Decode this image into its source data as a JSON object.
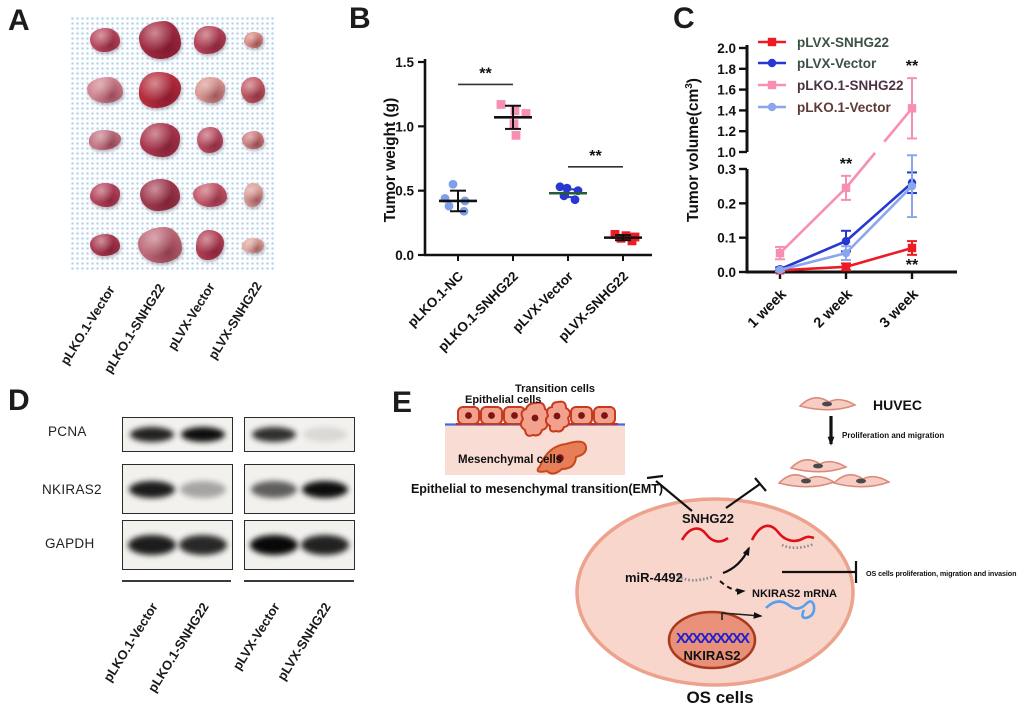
{
  "panel_labels": {
    "a": "A",
    "b": "B",
    "c": "C",
    "d": "D",
    "e": "E"
  },
  "panel_a": {
    "group_labels": [
      "pLKO.1-Vector",
      "pLKO.1-SNHG22",
      "pLVX-Vector",
      "pLVX-SNHG22"
    ],
    "tumors": [
      [
        30,
        24,
        "#b8485e"
      ],
      [
        42,
        38,
        "#a02a42"
      ],
      [
        32,
        28,
        "#b34258"
      ],
      [
        19,
        16,
        "#d98f86"
      ],
      [
        36,
        26,
        "#cf8490"
      ],
      [
        42,
        36,
        "#b52d3d"
      ],
      [
        30,
        26,
        "#d89a92"
      ],
      [
        24,
        26,
        "#c05a64"
      ],
      [
        32,
        20,
        "#c27784"
      ],
      [
        40,
        34,
        "#a8374e"
      ],
      [
        26,
        26,
        "#b94f62"
      ],
      [
        22,
        18,
        "#cc8280"
      ],
      [
        30,
        24,
        "#b4455c"
      ],
      [
        40,
        32,
        "#9e3a50"
      ],
      [
        34,
        24,
        "#c4586a"
      ],
      [
        19,
        24,
        "#daa198"
      ],
      [
        30,
        22,
        "#a83a50"
      ],
      [
        44,
        36,
        "#bc6a78"
      ],
      [
        28,
        30,
        "#b04054"
      ],
      [
        22,
        15,
        "#e0ad9f"
      ]
    ]
  },
  "chart_data": [
    {
      "type": "scatter",
      "ylabel": "Tumor weight (g)",
      "ylim": [
        0,
        1.5
      ],
      "yticks": [
        0,
        0.5,
        1,
        1.5
      ],
      "categories": [
        "pLKO.1-NC",
        "pLKO.1-SNHG22",
        "pLVX-Vector",
        "pLVX-SNHG22"
      ],
      "series": [
        {
          "category": "pLKO.1-NC",
          "color": "#7da0e8",
          "marker": "circle",
          "points": [
            0.55,
            0.44,
            0.42,
            0.38,
            0.34
          ],
          "mean": 0.42,
          "sd": 0.08,
          "mean_color": "#111111",
          "err_color": "#111111"
        },
        {
          "category": "pLKO.1-SNHG22",
          "color": "#f78fb2",
          "marker": "square",
          "points": [
            1.17,
            1.12,
            1.1,
            1.02,
            0.93
          ],
          "mean": 1.07,
          "sd": 0.09,
          "mean_color": "#111111",
          "err_color": "#111111"
        },
        {
          "category": "pLVX-Vector",
          "color": "#2638d0",
          "marker": "circle",
          "points": [
            0.53,
            0.52,
            0.5,
            0.46,
            0.43
          ],
          "mean": 0.48,
          "sd": 0.03,
          "mean_color": "#2a5c34",
          "err_color": "#2638d0"
        },
        {
          "category": "pLVX-SNHG22",
          "color": "#ec1c24",
          "marker": "square",
          "points": [
            0.16,
            0.15,
            0.14,
            0.13,
            0.11
          ],
          "mean": 0.135,
          "sd": 0.02,
          "mean_color": "#111111",
          "err_color": "#111111"
        }
      ],
      "significance": [
        {
          "between": [
            0,
            1
          ],
          "label": "**"
        },
        {
          "between": [
            2,
            3
          ],
          "label": "**"
        }
      ]
    },
    {
      "type": "line",
      "ylabel": {
        "main": "Tumor volume(cm",
        "sup": "3",
        "end": ")"
      },
      "x_categories": [
        "1 week",
        "2 week",
        "3 week"
      ],
      "axis_break": {
        "lower_range": [
          0,
          0.3
        ],
        "upper_range": [
          1,
          2
        ],
        "lower_ticks": [
          0,
          0.1,
          0.2,
          0.3
        ],
        "upper_ticks": [
          1,
          1.2,
          1.4,
          1.6,
          1.8,
          2
        ]
      },
      "series": [
        {
          "name": "pLVX-SNHG22",
          "color": "#ec1c24",
          "marker": "square",
          "label_color": "#3c5244",
          "values": [
            0.005,
            0.015,
            0.07
          ],
          "errors": [
            0.004,
            0.01,
            0.02
          ]
        },
        {
          "name": "pLVX-Vector",
          "color": "#2638d0",
          "marker": "circle",
          "label_color": "#3c5244",
          "values": [
            0.008,
            0.09,
            0.26
          ],
          "errors": [
            0.005,
            0.03,
            0.03
          ]
        },
        {
          "name": "pLKO.1-SNHG22",
          "color": "#f78fb2",
          "marker": "square",
          "label_color": "#4c3344",
          "values": [
            0.055,
            0.245,
            1.42
          ],
          "errors": [
            0.018,
            0.035,
            0.29
          ]
        },
        {
          "name": "pLKO.1-Vector",
          "color": "#8aa6ec",
          "marker": "circle",
          "label_color": "#5e3a36",
          "values": [
            0.006,
            0.055,
            0.25
          ],
          "errors": [
            0.004,
            0.02,
            0.09
          ]
        }
      ],
      "annotations": [
        {
          "series": 2,
          "x": 1,
          "label": "**",
          "pos": "above"
        },
        {
          "series": 2,
          "x": 2,
          "label": "**",
          "pos": "above"
        },
        {
          "series": 0,
          "x": 2,
          "label": "**",
          "pos": "below"
        }
      ]
    }
  ],
  "panel_d": {
    "row_labels": [
      "PCNA",
      "NKIRAS2",
      "GAPDH"
    ],
    "lane_labels": [
      "pLKO.1-Vector",
      "pLKO.1-SNHG22",
      "pLVX-Vector",
      "pLVX-SNHG22"
    ],
    "bands": [
      [
        0.88,
        0.97,
        0.82,
        0.1
      ],
      [
        0.9,
        0.32,
        0.62,
        0.97
      ],
      [
        0.9,
        0.85,
        0.99,
        0.88
      ]
    ]
  },
  "panel_e": {
    "transition_cells": "Transition cells",
    "epithelial_cells": "Epithelial cells",
    "mesenchymal_cells": "Mesenchymal cells",
    "emt_caption": "Epithelial to mesenchymal transition(EMT)",
    "huvec": "HUVEC",
    "proliferation": "Proliferation and migration",
    "snhg22": "SNHG22",
    "mir4492": "miR-4492",
    "nkiras2_mrna": "NKIRAS2 mRNA",
    "nkiras2_gene": "NKIRAS2",
    "dna": "XXXXXXXXX",
    "os_inhibit": "OS cells proliferation, migration and invasion",
    "os_cells": "OS cells"
  }
}
